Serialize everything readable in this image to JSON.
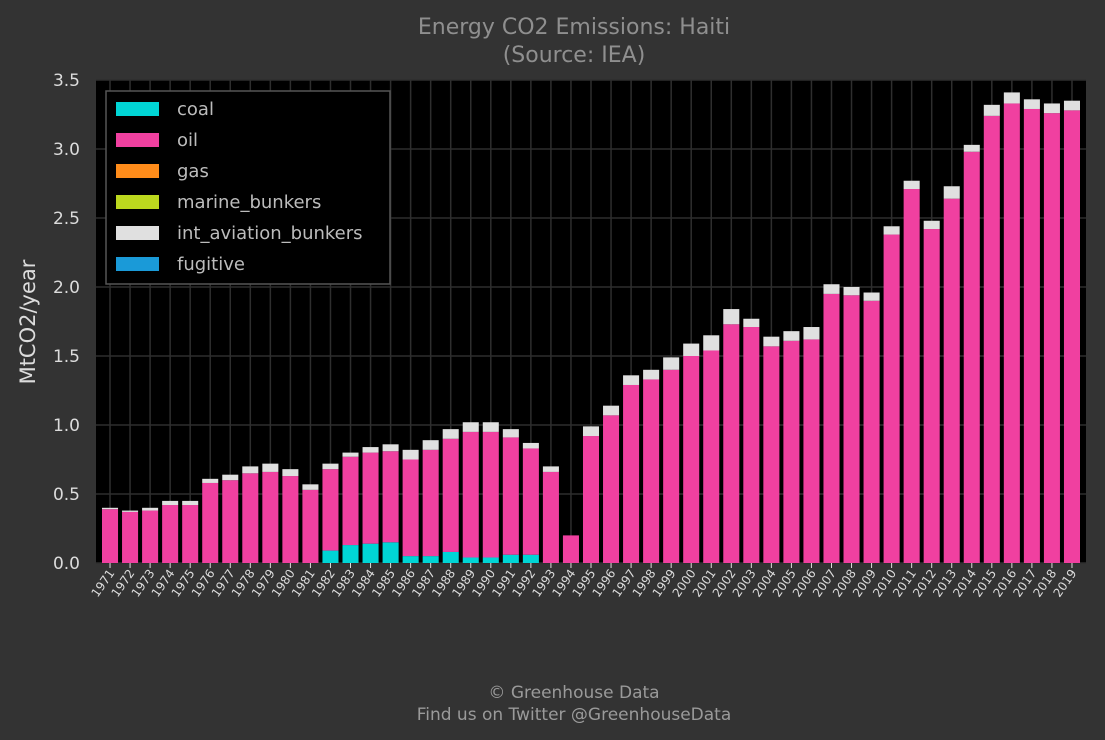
{
  "chart_data": {
    "type": "bar",
    "stacked": true,
    "title": "Energy CO2 Emissions: Haiti",
    "subtitle": "(Source: IEA)",
    "ylabel": "MtCO2/year",
    "xlabel": "",
    "ylim": [
      0,
      3.5
    ],
    "yticks": [
      "0.0",
      "0.5",
      "1.0",
      "1.5",
      "2.0",
      "2.5",
      "3.0",
      "3.5"
    ],
    "grid": true,
    "legend_position": "top-left",
    "categories": [
      "1971",
      "1972",
      "1973",
      "1974",
      "1975",
      "1976",
      "1977",
      "1978",
      "1979",
      "1980",
      "1981",
      "1982",
      "1983",
      "1984",
      "1985",
      "1986",
      "1987",
      "1988",
      "1989",
      "1990",
      "1991",
      "1992",
      "1993",
      "1994",
      "1995",
      "1996",
      "1997",
      "1998",
      "1999",
      "2000",
      "2001",
      "2002",
      "2003",
      "2004",
      "2005",
      "2006",
      "2007",
      "2008",
      "2009",
      "2010",
      "2011",
      "2012",
      "2013",
      "2014",
      "2015",
      "2016",
      "2017",
      "2018",
      "2019"
    ],
    "series": [
      {
        "name": "coal",
        "color": "#00d5d5",
        "values": [
          0,
          0,
          0,
          0,
          0,
          0,
          0,
          0,
          0,
          0,
          0,
          0.09,
          0.13,
          0.14,
          0.15,
          0.05,
          0.05,
          0.08,
          0.04,
          0.04,
          0.06,
          0.06,
          0,
          0,
          0,
          0,
          0,
          0,
          0,
          0,
          0,
          0,
          0,
          0,
          0,
          0,
          0,
          0,
          0,
          0,
          0,
          0,
          0,
          0,
          0,
          0,
          0,
          0,
          0
        ]
      },
      {
        "name": "oil",
        "color": "#f040a0",
        "values": [
          0.39,
          0.37,
          0.38,
          0.42,
          0.42,
          0.58,
          0.6,
          0.65,
          0.66,
          0.63,
          0.53,
          0.59,
          0.64,
          0.66,
          0.66,
          0.7,
          0.77,
          0.82,
          0.91,
          0.91,
          0.85,
          0.77,
          0.66,
          0.2,
          0.92,
          1.07,
          1.29,
          1.33,
          1.4,
          1.5,
          1.54,
          1.73,
          1.71,
          1.57,
          1.61,
          1.62,
          1.95,
          1.94,
          1.9,
          2.38,
          2.71,
          2.42,
          2.64,
          2.98,
          3.24,
          3.33,
          3.29,
          3.26,
          3.28
        ]
      },
      {
        "name": "gas",
        "color": "#ff8c1a",
        "values": [
          0,
          0,
          0,
          0,
          0,
          0,
          0,
          0,
          0,
          0,
          0,
          0,
          0,
          0,
          0,
          0,
          0,
          0,
          0,
          0,
          0,
          0,
          0,
          0,
          0,
          0,
          0,
          0,
          0,
          0,
          0,
          0,
          0,
          0,
          0,
          0,
          0,
          0,
          0,
          0,
          0,
          0,
          0,
          0,
          0,
          0,
          0,
          0,
          0
        ]
      },
      {
        "name": "marine_bunkers",
        "color": "#bcd81e",
        "values": [
          0,
          0,
          0,
          0,
          0,
          0,
          0,
          0,
          0,
          0,
          0,
          0,
          0,
          0,
          0,
          0,
          0,
          0,
          0,
          0,
          0,
          0,
          0,
          0,
          0,
          0,
          0,
          0,
          0,
          0,
          0,
          0,
          0,
          0,
          0,
          0,
          0,
          0,
          0,
          0,
          0,
          0,
          0,
          0,
          0,
          0,
          0,
          0,
          0
        ]
      },
      {
        "name": "int_aviation_bunkers",
        "color": "#e0e0e0",
        "values": [
          0.01,
          0.01,
          0.02,
          0.03,
          0.03,
          0.03,
          0.04,
          0.05,
          0.06,
          0.05,
          0.04,
          0.04,
          0.03,
          0.04,
          0.05,
          0.07,
          0.07,
          0.07,
          0.07,
          0.07,
          0.06,
          0.04,
          0.04,
          0,
          0.07,
          0.07,
          0.07,
          0.07,
          0.09,
          0.09,
          0.11,
          0.11,
          0.06,
          0.07,
          0.07,
          0.09,
          0.07,
          0.06,
          0.06,
          0.06,
          0.06,
          0.06,
          0.09,
          0.05,
          0.08,
          0.08,
          0.07,
          0.07,
          0.07
        ]
      },
      {
        "name": "fugitive",
        "color": "#1a9ad8",
        "values": [
          0,
          0,
          0,
          0,
          0,
          0,
          0,
          0,
          0,
          0,
          0,
          0,
          0,
          0,
          0,
          0,
          0,
          0,
          0,
          0,
          0,
          0,
          0,
          0,
          0,
          0,
          0,
          0,
          0,
          0,
          0,
          0,
          0,
          0,
          0,
          0,
          0,
          0,
          0,
          0,
          0,
          0,
          0,
          0,
          0,
          0,
          0,
          0,
          0
        ]
      }
    ]
  },
  "footer": {
    "credit": "© Greenhouse Data",
    "twitter": "Find us on Twitter @GreenhouseData"
  }
}
